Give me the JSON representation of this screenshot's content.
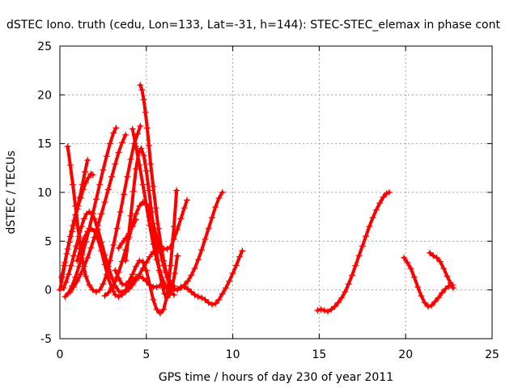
{
  "chart_data": {
    "type": "scatter",
    "title": "dSTEC Iono. truth (cedu, Lon=133, Lat=-31, h=144): STEC-STEC_elemax in phase cont",
    "xlabel": "GPS time / hours of day 230 of year 2011",
    "ylabel": "dSTEC  / TECUs",
    "xlim": [
      0,
      25
    ],
    "ylim": [
      -5,
      25
    ],
    "xticks": [
      0,
      5,
      10,
      15,
      20,
      25
    ],
    "yticks": [
      -5,
      0,
      5,
      10,
      15,
      20,
      25
    ],
    "xtick_labels": [
      "0",
      "5",
      "10",
      "15",
      "20",
      "25"
    ],
    "ytick_labels": [
      "-5",
      "0",
      "5",
      "10",
      "15",
      "20",
      "25"
    ],
    "grid": true,
    "marker": "+",
    "color": "#ff0000",
    "series": [
      {
        "x": [
          0.45,
          0.6,
          0.75,
          0.9,
          1.05,
          1.2,
          1.35,
          1.5,
          1.7,
          1.9,
          2.1,
          2.3,
          2.5,
          2.7,
          2.9,
          3.1,
          3.3,
          3.5,
          3.7,
          3.9,
          4.1,
          4.3,
          4.5,
          4.65
        ],
        "y": [
          14.7,
          12.8,
          10.8,
          8.6,
          6.3,
          4.3,
          2.7,
          1.4,
          0.5,
          0.0,
          -0.2,
          0.0,
          0.6,
          1.6,
          3.0,
          4.6,
          6.3,
          8.0,
          9.8,
          11.6,
          13.4,
          15.0,
          16.0,
          16.8
        ]
      },
      {
        "x": [
          0.2,
          0.35,
          0.5,
          0.65,
          0.8,
          0.95,
          1.1,
          1.25,
          1.4,
          1.55,
          1.7,
          1.85,
          2.0,
          2.2,
          2.4,
          2.6,
          2.8,
          3.0,
          3.2,
          3.4,
          3.6,
          3.8,
          4.0,
          4.2,
          4.4,
          4.6,
          4.8,
          5.0,
          5.2,
          5.4,
          5.6,
          5.8,
          6.0,
          6.2,
          6.4,
          6.6,
          6.8,
          7.0,
          7.2,
          7.35
        ],
        "y": [
          0.2,
          0.8,
          1.6,
          2.5,
          3.5,
          4.5,
          5.5,
          6.5,
          7.3,
          7.8,
          8.0,
          7.8,
          7.3,
          6.2,
          4.9,
          3.6,
          2.4,
          1.3,
          0.4,
          -0.1,
          -0.3,
          -0.2,
          0.1,
          0.5,
          1.0,
          1.6,
          2.2,
          2.8,
          3.4,
          3.9,
          4.2,
          4.3,
          4.2,
          4.2,
          4.4,
          5.2,
          6.2,
          7.3,
          8.4,
          9.2
        ]
      },
      {
        "x": [
          0.0,
          0.15,
          0.3,
          0.45,
          0.6,
          0.75,
          0.9,
          1.05,
          1.2,
          1.35,
          1.5,
          1.65,
          1.8,
          1.9
        ],
        "y": [
          0.0,
          1.3,
          2.8,
          4.2,
          5.5,
          6.6,
          7.7,
          8.6,
          9.4,
          10.3,
          11.0,
          11.5,
          11.9,
          11.8
        ]
      },
      {
        "x": [
          0.1,
          0.25,
          0.4,
          0.55,
          0.7,
          0.85,
          1.0,
          1.15,
          1.3,
          1.45,
          1.6
        ],
        "y": [
          1.3,
          2.5,
          3.7,
          4.9,
          6.0,
          7.1,
          8.3,
          9.5,
          10.8,
          12.1,
          13.3
        ]
      },
      {
        "x": [
          0.3,
          0.5,
          0.7,
          0.9,
          1.1,
          1.3,
          1.5,
          1.7,
          1.9,
          2.1,
          2.3,
          2.5,
          2.7,
          2.9,
          3.1,
          3.25
        ],
        "y": [
          -0.7,
          -0.3,
          0.4,
          1.3,
          2.4,
          3.6,
          4.9,
          6.3,
          7.8,
          9.3,
          10.8,
          12.3,
          13.7,
          15.0,
          16.1,
          16.6
        ]
      },
      {
        "x": [
          0.6,
          0.8,
          1.0,
          1.2,
          1.4,
          1.6,
          1.8,
          2.0,
          2.2,
          2.4,
          2.6,
          2.8,
          3.0,
          3.2,
          3.4,
          3.6,
          3.8
        ],
        "y": [
          -0.2,
          0.3,
          0.9,
          1.6,
          2.4,
          3.3,
          4.3,
          5.4,
          6.6,
          7.8,
          9.0,
          10.3,
          11.6,
          12.9,
          14.1,
          15.1,
          15.9
        ]
      },
      {
        "x": [
          1.0,
          1.2,
          1.4,
          1.6,
          1.8,
          2.0,
          2.2,
          2.4,
          2.6,
          2.8,
          3.0,
          3.2,
          3.4,
          3.6,
          3.8,
          4.0,
          4.2,
          4.4,
          4.6,
          4.8,
          5.0,
          5.2,
          5.4,
          5.6,
          5.8,
          6.0,
          6.2,
          6.4,
          6.6,
          6.8,
          7.0,
          7.2,
          7.4,
          7.6,
          7.8,
          8.0,
          8.2,
          8.4,
          8.6,
          8.8,
          9.0,
          9.2,
          9.4,
          9.6,
          9.8,
          10.0,
          10.2,
          10.4,
          10.55
        ],
        "y": [
          3.0,
          4.2,
          5.3,
          6.0,
          6.3,
          6.0,
          5.2,
          4.0,
          2.6,
          1.2,
          0.2,
          -0.5,
          -0.7,
          -0.5,
          0.0,
          0.5,
          1.0,
          1.3,
          1.4,
          1.2,
          0.9,
          0.5,
          0.3,
          0.3,
          0.4,
          0.4,
          0.2,
          0.0,
          0.0,
          0.1,
          0.3,
          0.3,
          0.1,
          -0.2,
          -0.5,
          -0.7,
          -0.8,
          -1.0,
          -1.3,
          -1.5,
          -1.4,
          -1.0,
          -0.4,
          0.2,
          0.9,
          1.7,
          2.5,
          3.4,
          4.0
        ]
      },
      {
        "x": [
          2.6,
          2.8,
          3.0,
          3.2,
          3.4,
          3.6,
          3.8,
          4.0,
          4.2,
          4.4,
          4.6,
          4.8,
          5.0,
          5.2,
          5.4,
          5.6,
          5.8,
          6.0,
          6.2,
          6.4,
          6.6,
          6.8,
          7.0,
          7.2,
          7.4,
          7.6,
          7.8,
          8.0,
          8.2,
          8.4,
          8.6,
          8.8,
          9.0,
          9.2,
          9.4
        ],
        "y": [
          -0.6,
          -0.3,
          0.2,
          0.9,
          1.8,
          2.9,
          4.1,
          5.4,
          6.7,
          7.8,
          8.6,
          9.0,
          8.8,
          8.0,
          6.8,
          5.4,
          3.9,
          2.5,
          1.3,
          0.5,
          0.1,
          0.0,
          0.2,
          0.5,
          0.9,
          1.5,
          2.2,
          3.1,
          4.1,
          5.2,
          6.3,
          7.4,
          8.5,
          9.4,
          10.0
        ]
      },
      {
        "x": [
          4.65,
          4.75,
          4.85,
          4.95,
          5.05,
          5.15,
          5.25,
          5.4,
          5.55,
          5.7,
          5.85,
          6.0,
          6.15,
          6.3,
          6.45,
          6.6
        ],
        "y": [
          21.0,
          20.5,
          19.5,
          18.2,
          16.6,
          14.8,
          12.9,
          10.6,
          8.4,
          6.3,
          4.5,
          3.0,
          1.8,
          1.0,
          0.6,
          0.4
        ]
      },
      {
        "x": [
          4.2,
          4.4,
          4.6,
          4.8,
          5.0,
          5.2,
          5.4,
          5.6,
          5.8,
          6.0,
          6.2,
          6.4,
          6.6
        ],
        "y": [
          16.5,
          14.7,
          12.8,
          10.8,
          8.7,
          6.6,
          4.7,
          3.1,
          1.8,
          0.8,
          0.1,
          -0.3,
          -0.5
        ]
      },
      {
        "x": [
          3.8,
          3.95,
          4.1,
          4.25,
          4.4,
          4.55,
          4.7,
          4.85,
          5.0,
          5.15,
          5.3,
          5.45,
          5.6,
          5.75,
          5.9,
          6.05,
          6.2,
          6.35,
          6.5,
          6.65,
          6.8
        ],
        "y": [
          3.0,
          5.2,
          7.6,
          10.1,
          12.4,
          14.0,
          14.5,
          13.8,
          12.2,
          10.2,
          8.0,
          5.8,
          3.8,
          2.0,
          0.6,
          -0.4,
          -0.8,
          -0.5,
          0.3,
          1.7,
          3.5
        ]
      },
      {
        "x": [
          3.2,
          3.4,
          3.6,
          3.8,
          4.0,
          4.2,
          4.4,
          4.6,
          4.8,
          5.0,
          5.2,
          5.4,
          5.6,
          5.8,
          6.0,
          6.2,
          6.4,
          6.6,
          6.75
        ],
        "y": [
          2.0,
          1.2,
          0.6,
          0.5,
          0.9,
          1.6,
          2.4,
          3.0,
          2.9,
          2.0,
          0.5,
          -1.0,
          -2.0,
          -2.4,
          -2.0,
          -0.6,
          2.5,
          6.5,
          10.2
        ]
      },
      {
        "x": [
          3.4,
          3.6,
          3.8,
          4.0,
          4.2,
          4.4
        ],
        "y": [
          4.3,
          4.8,
          5.3,
          5.8,
          6.5,
          7.2
        ]
      },
      {
        "x": [
          14.9,
          15.1,
          15.3,
          15.5,
          15.7,
          15.9,
          16.1,
          16.3,
          16.5,
          16.7,
          16.9,
          17.1,
          17.3,
          17.5,
          17.7,
          17.9,
          18.1,
          18.3,
          18.5,
          18.7,
          18.9,
          19.05
        ],
        "y": [
          -2.1,
          -2.0,
          -2.1,
          -2.2,
          -2.0,
          -1.7,
          -1.3,
          -0.8,
          -0.2,
          0.6,
          1.5,
          2.5,
          3.5,
          4.5,
          5.5,
          6.5,
          7.4,
          8.2,
          8.9,
          9.5,
          9.9,
          10.0
        ]
      },
      {
        "x": [
          19.9,
          20.1,
          20.3,
          20.5,
          20.7,
          20.9,
          21.1,
          21.3,
          21.5,
          21.7,
          21.9,
          22.1,
          22.3,
          22.5,
          22.7
        ],
        "y": [
          3.3,
          2.8,
          2.2,
          1.3,
          0.3,
          -0.6,
          -1.3,
          -1.7,
          -1.6,
          -1.2,
          -0.8,
          -0.3,
          0.1,
          0.4,
          0.5
        ]
      },
      {
        "x": [
          21.4,
          21.6,
          21.8,
          22.0,
          22.2,
          22.4,
          22.6,
          22.75
        ],
        "y": [
          3.8,
          3.5,
          3.3,
          2.9,
          2.2,
          1.4,
          0.7,
          0.2
        ]
      }
    ]
  }
}
